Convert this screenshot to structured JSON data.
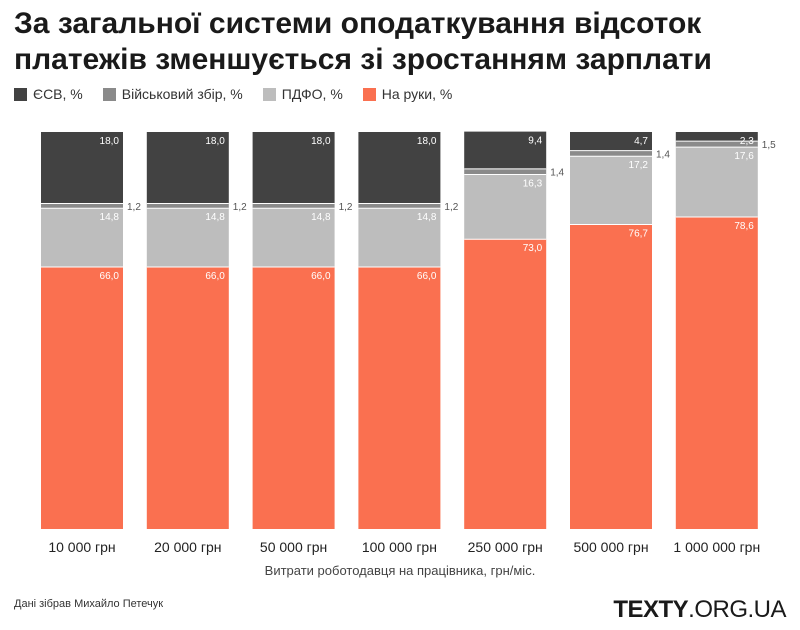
{
  "title": "За загальної системи оподаткування відсоток платежів зменшується зі зростанням зарплати",
  "footer": {
    "source": "Дані зібрав Михайло Петечук"
  },
  "brand": {
    "main": "TEXTY",
    "suffix": ".ORG.UA"
  },
  "chart_data": {
    "type": "bar",
    "stacked": true,
    "categories": [
      "10 000 грн",
      "20 000 грн",
      "50 000 грн",
      "100 000 грн",
      "250 000 грн",
      "500 000 грн",
      "1 000 000 грн"
    ],
    "xlabel": "Витрати роботодавця на працівника, грн/міс.",
    "ylabel": "",
    "ylim": [
      0,
      100
    ],
    "grid": false,
    "legend_position": "top-left",
    "series": [
      {
        "name": "На руки, %",
        "color": "#fa7050",
        "values": [
          66.0,
          66.0,
          66.0,
          66.0,
          73.0,
          76.7,
          78.6
        ],
        "labels": [
          "66,0",
          "66,0",
          "66,0",
          "66,0",
          "73,0",
          "76,7",
          "78,6"
        ]
      },
      {
        "name": "ПДФО, %",
        "color": "#bdbdbd",
        "values": [
          14.8,
          14.8,
          14.8,
          14.8,
          16.3,
          17.2,
          17.6
        ],
        "labels": [
          "14,8",
          "14,8",
          "14,8",
          "14,8",
          "16,3",
          "17,2",
          "17,6"
        ]
      },
      {
        "name": "Військовий збір, %",
        "color": "#8a8a8a",
        "values": [
          1.2,
          1.2,
          1.2,
          1.2,
          1.4,
          1.4,
          1.5
        ],
        "labels": [
          "1,2",
          "1,2",
          "1,2",
          "1,2",
          "1,4",
          "1,4",
          "1,5"
        ]
      },
      {
        "name": "ЄСВ, %",
        "color": "#424242",
        "values": [
          18.0,
          18.0,
          18.0,
          18.0,
          9.4,
          4.7,
          2.3
        ],
        "labels": [
          "18,0",
          "18,0",
          "18,0",
          "18,0",
          "9,4",
          "4,7",
          "2,3"
        ]
      }
    ],
    "legend_order": [
      3,
      2,
      1,
      0
    ]
  }
}
